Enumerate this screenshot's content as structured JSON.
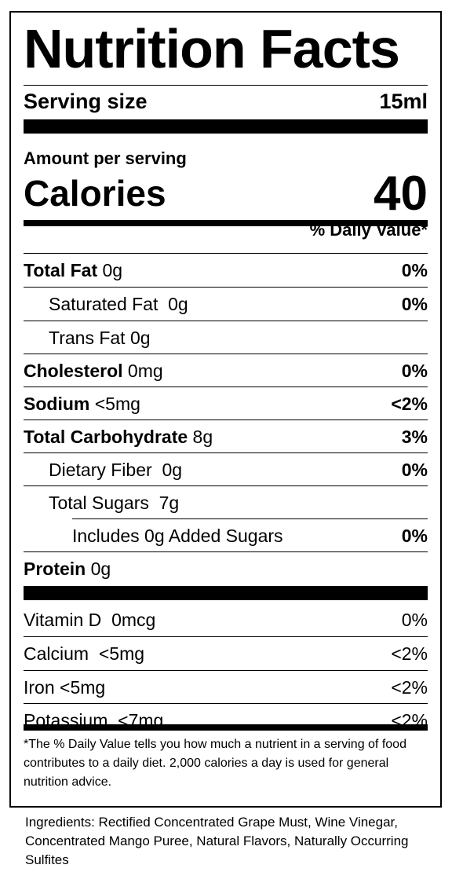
{
  "title": "Nutrition Facts",
  "serving": {
    "label": "Serving size",
    "value": "15ml"
  },
  "amount_per_serving": "Amount per serving",
  "calories": {
    "label": "Calories",
    "value": "40"
  },
  "daily_value_header": "% Daily Value*",
  "nutrients": [
    {
      "name": "Total Fat",
      "amount": "0g",
      "dv": "0%"
    },
    {
      "name": "Saturated Fat",
      "amount": "0g",
      "dv": "0%"
    },
    {
      "name": "Trans Fat",
      "amount": "0g",
      "dv": ""
    },
    {
      "name": "Cholesterol",
      "amount": "0mg",
      "dv": "0%"
    },
    {
      "name": "Sodium",
      "amount": "<5mg",
      "dv": "<2%"
    },
    {
      "name": "Total Carbohydrate",
      "amount": "8g",
      "dv": "3%"
    },
    {
      "name": "Dietary Fiber",
      "amount": "0g",
      "dv": "0%"
    },
    {
      "name": "Total Sugars",
      "amount": "7g",
      "dv": ""
    },
    {
      "name": "Includes 0g Added Sugars",
      "amount": "",
      "dv": "0%"
    },
    {
      "name": "Protein",
      "amount": "0g",
      "dv": ""
    }
  ],
  "vitamins": [
    {
      "name": "Vitamin D",
      "amount": "0mcg",
      "dv": "0%"
    },
    {
      "name": "Calcium",
      "amount": "<5mg",
      "dv": "<2%"
    },
    {
      "name": "Iron",
      "amount": "<5mg",
      "dv": "<2%"
    },
    {
      "name": "Potassium",
      "amount": "<7mg",
      "dv": "<2%"
    }
  ],
  "footnote": "*The % Daily Value tells you how much a nutrient in a serving of food contributes to a daily diet. 2,000 calories a day is used for general nutrition advice.",
  "ingredients": "Ingredients: Rectified Concentrated Grape Must, Wine Vinegar, Concentrated Mango Puree, Natural Flavors, Naturally Occurring Sulfites"
}
